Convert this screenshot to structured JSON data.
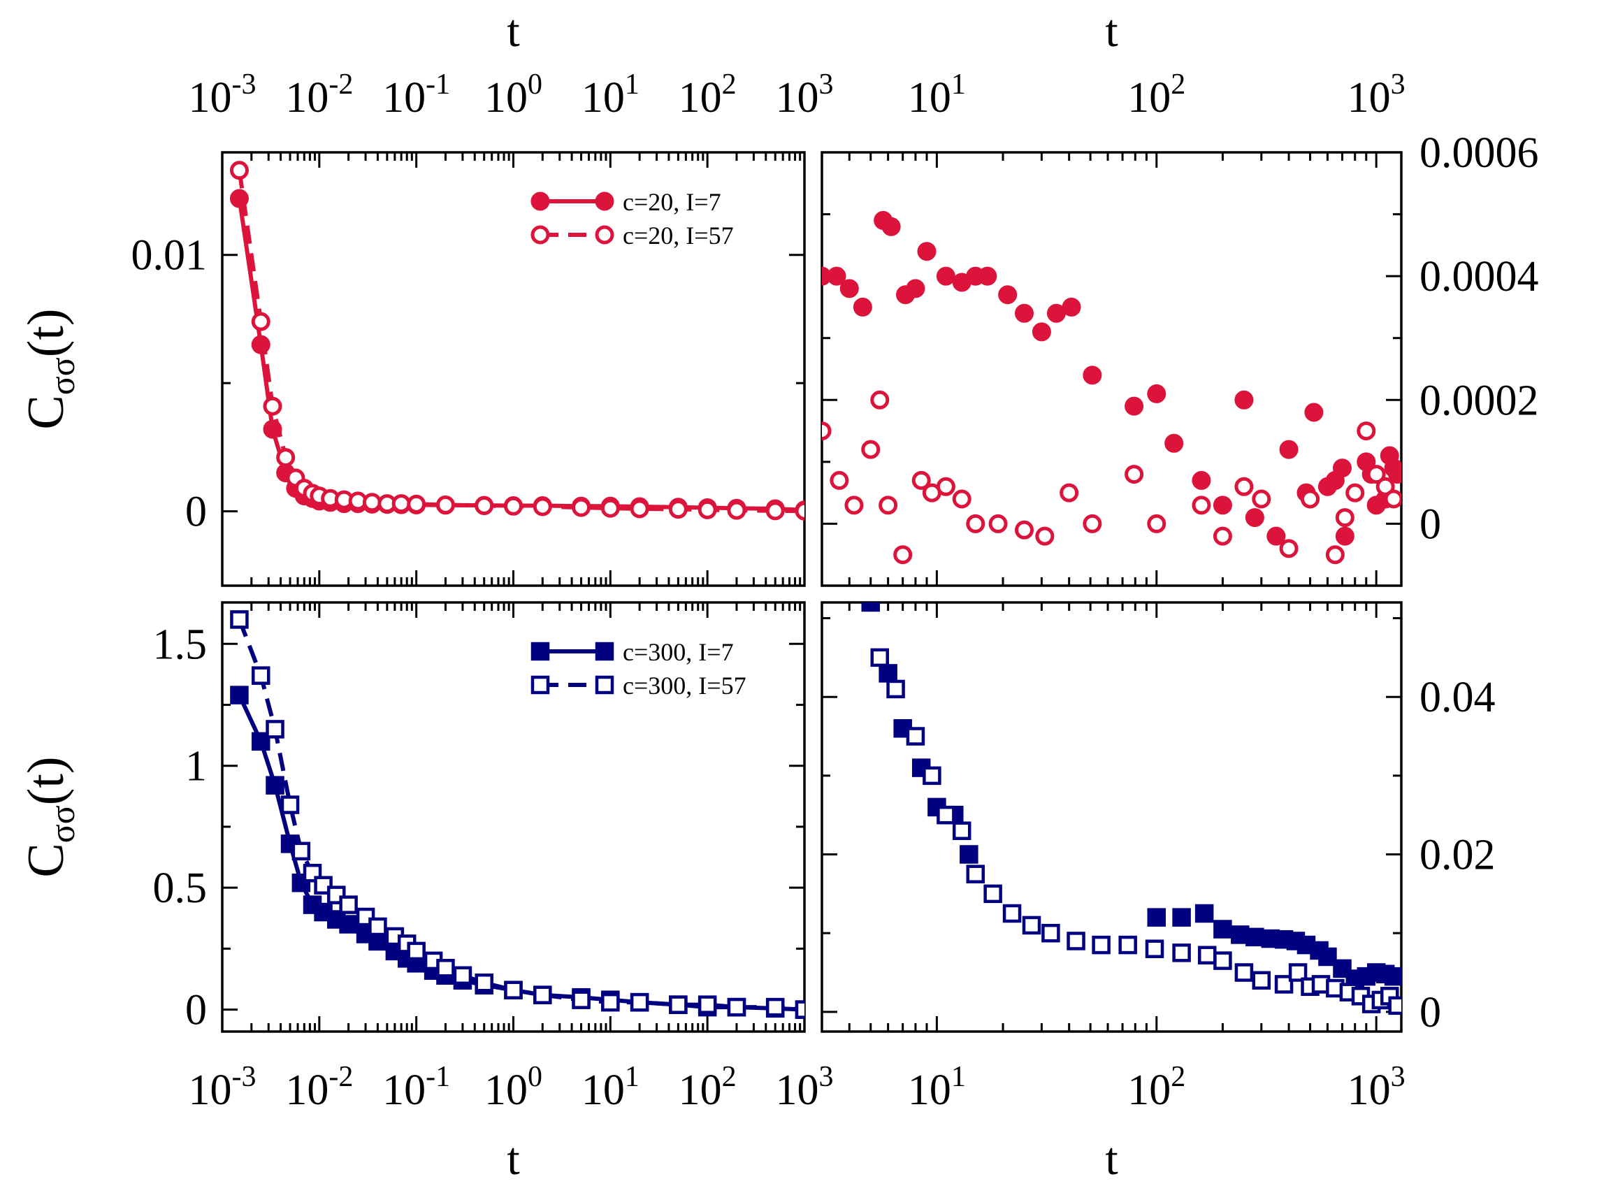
{
  "chart_data": [
    {
      "id": "tl",
      "type": "line",
      "xscale": "log",
      "xlim": [
        0.001,
        1000
      ],
      "ylim": [
        -0.0029,
        0.014
      ],
      "xlabel_top": "t",
      "xticklabels": [
        "10^-3",
        "10^-2",
        "10^-1",
        "10^0",
        "10^1",
        "10^2",
        "10^3"
      ],
      "ylabel": "C_σσ(t)",
      "yticks": [
        0,
        0.01
      ],
      "yticklabels": [
        "0",
        "0.01"
      ],
      "legend_position": "top-right",
      "color": "#dc143c",
      "series": [
        {
          "name": "c=20,   I=7",
          "marker": "filled-circle",
          "line": "solid",
          "x": [
            0.0015,
            0.0025,
            0.0033,
            0.0045,
            0.0057,
            0.007,
            0.0085,
            0.01,
            0.013,
            0.018,
            0.025,
            0.035,
            0.05,
            0.07,
            0.1,
            0.2,
            0.5,
            1,
            2,
            5,
            10,
            20,
            50,
            100,
            200,
            500,
            1000
          ],
          "y": [
            0.0122,
            0.0065,
            0.0032,
            0.0015,
            0.0009,
            0.0006,
            0.0005,
            0.0004,
            0.00035,
            0.0003,
            0.0003,
            0.00028,
            0.00027,
            0.00026,
            0.00025,
            0.00024,
            0.00023,
            0.00022,
            0.00022,
            0.0002,
            0.0002,
            0.00018,
            0.00016,
            0.00014,
            0.00012,
            0.0001,
            5e-05
          ]
        },
        {
          "name": "c=20,   I=57",
          "marker": "open-circle",
          "line": "dashed",
          "x": [
            0.0015,
            0.0025,
            0.0033,
            0.0045,
            0.0057,
            0.007,
            0.0085,
            0.01,
            0.013,
            0.018,
            0.025,
            0.035,
            0.05,
            0.07,
            0.1,
            0.2,
            0.5,
            1,
            2,
            5,
            10,
            20,
            50,
            100,
            200,
            500,
            1000
          ],
          "y": [
            0.0133,
            0.0074,
            0.0041,
            0.0021,
            0.0013,
            0.0009,
            0.0007,
            0.0006,
            0.0005,
            0.00045,
            0.0004,
            0.00035,
            0.0003,
            0.0003,
            0.00028,
            0.00025,
            0.00022,
            0.0002,
            0.00018,
            0.00015,
            0.00012,
            0.0001,
            8e-05,
            6e-05,
            4e-05,
            2e-05,
            1e-05
          ]
        }
      ]
    },
    {
      "id": "tr",
      "type": "scatter",
      "xscale": "log",
      "xlim": [
        3,
        1300
      ],
      "ylim": [
        -0.0001,
        0.0006
      ],
      "xlabel_top": "t",
      "xticklabels": [
        "10^1",
        "10^2",
        "10^3"
      ],
      "yticks": [
        0,
        0.0002,
        0.0004,
        0.0006
      ],
      "yticklabels": [
        "0",
        "0.0002",
        "0.0004",
        "0.0006"
      ],
      "color": "#dc143c",
      "series": [
        {
          "name": "c=20, I=7",
          "marker": "filled-circle",
          "x": [
            3,
            3.5,
            4,
            4.6,
            5.7,
            6.2,
            7.2,
            8,
            9,
            11,
            13,
            15,
            17,
            21,
            25,
            30,
            35,
            41,
            51,
            79,
            100,
            120,
            160,
            200,
            250,
            280,
            350,
            400,
            480,
            500,
            520,
            600,
            650,
            700,
            720,
            900,
            950,
            1000,
            1100,
            1150,
            1200,
            1250
          ],
          "y": [
            0.0004,
            0.0004,
            0.00038,
            0.00035,
            0.00049,
            0.00048,
            0.00037,
            0.00038,
            0.00044,
            0.0004,
            0.00039,
            0.0004,
            0.0004,
            0.00037,
            0.00034,
            0.00031,
            0.00034,
            0.00035,
            0.00024,
            0.00019,
            0.00021,
            0.00013,
            7e-05,
            3e-05,
            0.0002,
            1e-05,
            -2e-05,
            0.00012,
            5e-05,
            4e-05,
            0.00018,
            6e-05,
            7e-05,
            9e-05,
            -2e-05,
            0.0001,
            8e-05,
            3e-05,
            4e-05,
            0.00011,
            9e-05,
            8e-05
          ]
        },
        {
          "name": "c=20, I=57",
          "marker": "open-circle",
          "x": [
            3,
            3.6,
            4.2,
            5,
            5.5,
            6,
            7,
            8.5,
            9.5,
            11,
            13,
            15,
            19,
            25,
            31,
            40,
            51,
            79,
            100,
            160,
            200,
            250,
            300,
            400,
            500,
            650,
            720,
            800,
            900,
            1000,
            1100,
            1200
          ],
          "y": [
            0.00015,
            7e-05,
            3e-05,
            0.00012,
            0.0002,
            3e-05,
            -5e-05,
            7e-05,
            5e-05,
            6e-05,
            4e-05,
            0.0,
            0.0,
            -1e-05,
            -2e-05,
            5e-05,
            0.0,
            8e-05,
            0.0,
            3e-05,
            -2e-05,
            6e-05,
            4e-05,
            -4e-05,
            4e-05,
            -5e-05,
            1e-05,
            5e-05,
            0.00015,
            8e-05,
            6e-05,
            4e-05
          ]
        }
      ]
    },
    {
      "id": "bl",
      "type": "line",
      "xscale": "log",
      "xlim": [
        0.001,
        1000
      ],
      "ylim": [
        -0.09,
        1.67
      ],
      "xlabel": "t",
      "xticklabels": [
        "10^-3",
        "10^-2",
        "10^-1",
        "10^0",
        "10^1",
        "10^2",
        "10^3"
      ],
      "ylabel": "C_σσ(t)",
      "yticks": [
        0,
        0.5,
        1,
        1.5
      ],
      "yticklabels": [
        "0",
        "0.5",
        "1",
        "1.5"
      ],
      "legend_position": "top-right",
      "color": "#000080",
      "series": [
        {
          "name": "c=300, I=7",
          "marker": "filled-square",
          "line": "solid",
          "x": [
            0.0015,
            0.0025,
            0.0035,
            0.005,
            0.0065,
            0.0085,
            0.011,
            0.015,
            0.02,
            0.03,
            0.04,
            0.06,
            0.08,
            0.1,
            0.15,
            0.2,
            0.3,
            0.5,
            1,
            2,
            5,
            10,
            20,
            50,
            100,
            200,
            500,
            1000
          ],
          "y": [
            1.29,
            1.1,
            0.92,
            0.68,
            0.52,
            0.43,
            0.4,
            0.37,
            0.35,
            0.31,
            0.28,
            0.24,
            0.21,
            0.19,
            0.16,
            0.14,
            0.12,
            0.1,
            0.08,
            0.06,
            0.05,
            0.04,
            0.03,
            0.02,
            0.01,
            0.01,
            0.005,
            0.0
          ]
        },
        {
          "name": "c=300, I=57",
          "marker": "open-square",
          "line": "dashed",
          "x": [
            0.0015,
            0.0025,
            0.0035,
            0.005,
            0.0065,
            0.0085,
            0.011,
            0.015,
            0.02,
            0.03,
            0.04,
            0.06,
            0.08,
            0.1,
            0.15,
            0.2,
            0.3,
            0.5,
            1,
            2,
            5,
            10,
            20,
            50,
            100,
            200,
            500,
            1000
          ],
          "y": [
            1.6,
            1.37,
            1.15,
            0.84,
            0.65,
            0.56,
            0.51,
            0.47,
            0.43,
            0.38,
            0.34,
            0.3,
            0.27,
            0.24,
            0.2,
            0.17,
            0.14,
            0.11,
            0.08,
            0.06,
            0.04,
            0.03,
            0.03,
            0.02,
            0.02,
            0.01,
            0.01,
            0.0
          ]
        }
      ]
    },
    {
      "id": "br",
      "type": "scatter",
      "xscale": "log",
      "xlim": [
        3,
        1300
      ],
      "ylim": [
        -0.0025,
        0.052
      ],
      "xlabel": "t",
      "xticklabels": [
        "10^1",
        "10^2",
        "10^3"
      ],
      "yticks": [
        0,
        0.02,
        0.04
      ],
      "yticklabels": [
        "0",
        "0.02",
        "0.04"
      ],
      "color": "#000080",
      "series": [
        {
          "name": "c=300, I=7",
          "marker": "filled-square",
          "x": [
            5,
            6,
            7,
            8.5,
            10,
            12,
            14,
            100,
            130,
            165,
            200,
            240,
            280,
            330,
            380,
            430,
            480,
            550,
            600,
            700,
            800,
            900,
            1000,
            1100,
            1200
          ],
          "y": [
            0.052,
            0.043,
            0.036,
            0.031,
            0.026,
            0.025,
            0.02,
            0.012,
            0.012,
            0.0125,
            0.0105,
            0.0098,
            0.0095,
            0.0093,
            0.0092,
            0.009,
            0.0085,
            0.0078,
            0.007,
            0.0055,
            0.0042,
            0.0045,
            0.005,
            0.0048,
            0.0045
          ]
        },
        {
          "name": "c=300, I=57",
          "marker": "open-square",
          "x": [
            5.5,
            6.5,
            8,
            9.5,
            11,
            13,
            15,
            18,
            22,
            27,
            33,
            43,
            56,
            74,
            98,
            130,
            170,
            200,
            250,
            300,
            380,
            440,
            500,
            560,
            650,
            750,
            850,
            950,
            1050,
            1150,
            1250
          ],
          "y": [
            0.045,
            0.041,
            0.035,
            0.03,
            0.025,
            0.023,
            0.0175,
            0.015,
            0.0125,
            0.011,
            0.01,
            0.009,
            0.0085,
            0.0085,
            0.008,
            0.0075,
            0.0072,
            0.0065,
            0.005,
            0.004,
            0.0035,
            0.005,
            0.0032,
            0.0035,
            0.003,
            0.0025,
            0.002,
            0.001,
            0.0015,
            0.002,
            0.0008
          ]
        }
      ]
    }
  ]
}
